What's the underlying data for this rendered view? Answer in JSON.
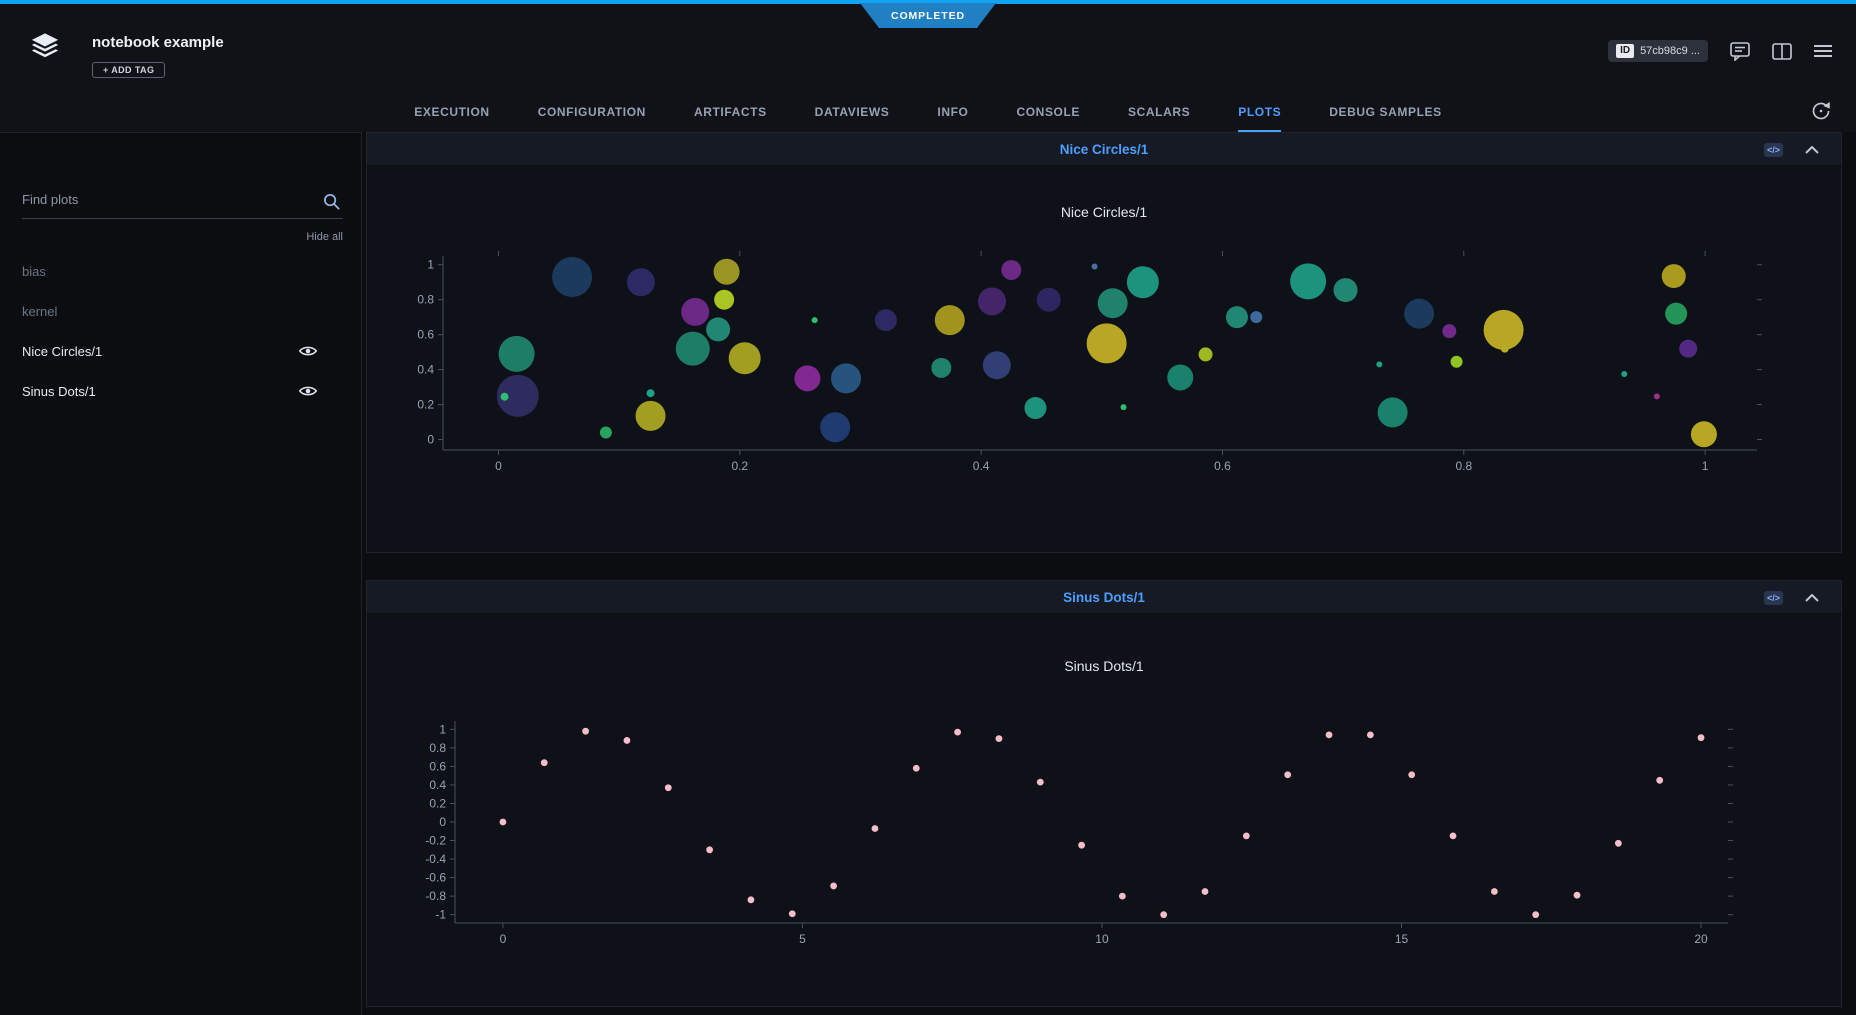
{
  "status": {
    "label": "COMPLETED"
  },
  "header": {
    "app_title": "notebook example",
    "add_tag_label": "+ ADD TAG",
    "id_label": "ID",
    "id_value": "57cb98c9 ..."
  },
  "tabs": [
    {
      "label": "EXECUTION"
    },
    {
      "label": "CONFIGURATION"
    },
    {
      "label": "ARTIFACTS"
    },
    {
      "label": "DATAVIEWS"
    },
    {
      "label": "INFO"
    },
    {
      "label": "CONSOLE"
    },
    {
      "label": "SCALARS"
    },
    {
      "label": "PLOTS",
      "active": true
    },
    {
      "label": "DEBUG SAMPLES"
    }
  ],
  "sidebar": {
    "search_placeholder": "Find plots",
    "hide_all_label": "Hide all",
    "items": [
      {
        "label": "bias",
        "visible": false
      },
      {
        "label": "kernel",
        "visible": false
      },
      {
        "label": "Nice Circles/1",
        "visible": true
      },
      {
        "label": "Sinus Dots/1",
        "visible": true
      }
    ]
  },
  "panels": [
    {
      "title": "Nice Circles/1"
    },
    {
      "title": "Sinus Dots/1"
    }
  ],
  "icons": {
    "code_glyph": "</>",
    "search": "search-icon",
    "eye": "eye-icon",
    "refresh": "auto-refresh-icon",
    "comment": "comment-icon",
    "panel": "panel-icon",
    "menu": "menu-icon"
  },
  "colors": {
    "accent": "#4d9fff",
    "status_line": "#12a4f2",
    "status_badge": "#2180c4",
    "axis": "#4a5160",
    "tick_label": "#9aa3b5"
  },
  "chart_data": [
    {
      "type": "bubble",
      "title": "Nice Circles/1",
      "xlabel": "",
      "ylabel": "",
      "xlim": [
        -0.046,
        1.043
      ],
      "ylim": [
        -0.06,
        1.05
      ],
      "xticks": [
        0,
        0.2,
        0.4,
        0.6,
        0.8,
        1
      ],
      "yticks": [
        0,
        0.2,
        0.4,
        0.6,
        0.8,
        1
      ],
      "grid": false,
      "legend": "none",
      "points": [
        [
          0.016,
          0.25,
          21,
          "#34306b",
          0.85
        ],
        [
          0.005,
          0.245,
          4,
          "#2fbf71",
          1
        ],
        [
          0.015,
          0.49,
          18,
          "#1f8a70",
          0.9
        ],
        [
          0.061,
          0.93,
          20,
          "#1e3f66",
          0.9
        ],
        [
          0.089,
          0.04,
          6,
          "#27a35f",
          1
        ],
        [
          0.118,
          0.9,
          14,
          "#312c6e",
          0.9
        ],
        [
          0.126,
          0.135,
          15,
          "#b3ae24",
          0.9
        ],
        [
          0.126,
          0.265,
          4,
          "#1fa188",
          1
        ],
        [
          0.161,
          0.52,
          17,
          "#1f8a70",
          0.9
        ],
        [
          0.163,
          0.73,
          14,
          "#7c2d99",
          0.85
        ],
        [
          0.182,
          0.63,
          12,
          "#23957c",
          0.9
        ],
        [
          0.187,
          0.8,
          10,
          "#a9c423",
          1
        ],
        [
          0.189,
          0.96,
          13,
          "#a8a325",
          0.9
        ],
        [
          0.204,
          0.465,
          16,
          "#b3ae24",
          0.9
        ],
        [
          0.262,
          0.683,
          3,
          "#2fbf71",
          1
        ],
        [
          0.256,
          0.35,
          13,
          "#8e2b9e",
          0.9
        ],
        [
          0.288,
          0.35,
          15,
          "#2d5f8f",
          0.85
        ],
        [
          0.279,
          0.07,
          15,
          "#21407a",
          0.9
        ],
        [
          0.321,
          0.683,
          11,
          "#312c6e",
          0.9
        ],
        [
          0.374,
          0.683,
          15,
          "#b3a21f",
          0.9
        ],
        [
          0.367,
          0.41,
          10,
          "#23957c",
          0.85
        ],
        [
          0.409,
          0.79,
          14,
          "#5b2d8f",
          0.7
        ],
        [
          0.413,
          0.425,
          14,
          "#3c4a8f",
          0.8
        ],
        [
          0.425,
          0.97,
          10,
          "#7c2d99",
          0.85
        ],
        [
          0.445,
          0.18,
          11,
          "#1fa188",
          0.9
        ],
        [
          0.456,
          0.8,
          12,
          "#312c6e",
          0.85
        ],
        [
          0.494,
          0.99,
          3,
          "#4a6fa5",
          1
        ],
        [
          0.504,
          0.55,
          20,
          "#c2af25",
          0.95
        ],
        [
          0.509,
          0.78,
          15,
          "#23957c",
          0.85
        ],
        [
          0.518,
          0.185,
          3,
          "#2fbf71",
          1
        ],
        [
          0.534,
          0.9,
          16,
          "#1fa188",
          0.9
        ],
        [
          0.565,
          0.355,
          13,
          "#1c8f76",
          0.9
        ],
        [
          0.586,
          0.487,
          7,
          "#9fb822",
          1
        ],
        [
          0.612,
          0.7,
          11,
          "#23957c",
          0.9
        ],
        [
          0.628,
          0.7,
          6,
          "#3e6a9e",
          1
        ],
        [
          0.671,
          0.905,
          18,
          "#1fa188",
          0.9
        ],
        [
          0.702,
          0.855,
          12,
          "#23957c",
          0.9
        ],
        [
          0.73,
          0.43,
          3,
          "#1fa188",
          1
        ],
        [
          0.741,
          0.155,
          15,
          "#1c8f76",
          0.9
        ],
        [
          0.763,
          0.72,
          15,
          "#1e3f66",
          0.9
        ],
        [
          0.794,
          0.445,
          6,
          "#8fc425",
          1
        ],
        [
          0.788,
          0.62,
          7,
          "#7c2d99",
          0.9
        ],
        [
          0.833,
          0.627,
          20,
          "#c2af25",
          0.95
        ],
        [
          0.834,
          0.52,
          4,
          "#b3ae24",
          1
        ],
        [
          0.933,
          0.375,
          3,
          "#1fa188",
          1
        ],
        [
          0.96,
          0.247,
          3,
          "#a12d8e",
          1
        ],
        [
          0.974,
          0.935,
          12,
          "#b3a21f",
          0.95
        ],
        [
          0.976,
          0.72,
          11,
          "#27a35f",
          0.9
        ],
        [
          0.986,
          0.52,
          9,
          "#5b2d8f",
          0.9
        ],
        [
          0.999,
          0.03,
          13,
          "#c2af25",
          0.95
        ]
      ]
    },
    {
      "type": "scatter",
      "title": "Sinus Dots/1",
      "xlabel": "",
      "ylabel": "",
      "xlim": [
        -0.8,
        20.45
      ],
      "ylim": [
        -1.09,
        1.09
      ],
      "xticks": [
        0,
        5,
        10,
        15,
        20
      ],
      "yticks": [
        -1,
        -0.8,
        -0.6,
        -0.4,
        -0.2,
        0,
        0.2,
        0.4,
        0.6,
        0.8,
        1
      ],
      "grid": false,
      "legend": "none",
      "marker_color": "#f7bdc8",
      "marker_size": 3.4,
      "x": [
        0,
        0.69,
        1.38,
        2.07,
        2.76,
        3.45,
        4.14,
        4.83,
        5.52,
        6.21,
        6.9,
        7.59,
        8.28,
        8.97,
        9.66,
        10.34,
        11.03,
        11.72,
        12.41,
        13.1,
        13.79,
        14.48,
        15.17,
        15.86,
        16.55,
        17.24,
        17.93,
        18.62,
        19.31,
        20
      ],
      "y": [
        0,
        0.64,
        0.98,
        0.88,
        0.37,
        -0.3,
        -0.84,
        -0.99,
        -0.69,
        -0.07,
        0.58,
        0.97,
        0.9,
        0.43,
        -0.25,
        -0.8,
        -1,
        -0.75,
        -0.15,
        0.51,
        0.94,
        0.94,
        0.51,
        -0.15,
        -0.75,
        -1,
        -0.79,
        -0.23,
        0.45,
        0.91
      ]
    }
  ]
}
